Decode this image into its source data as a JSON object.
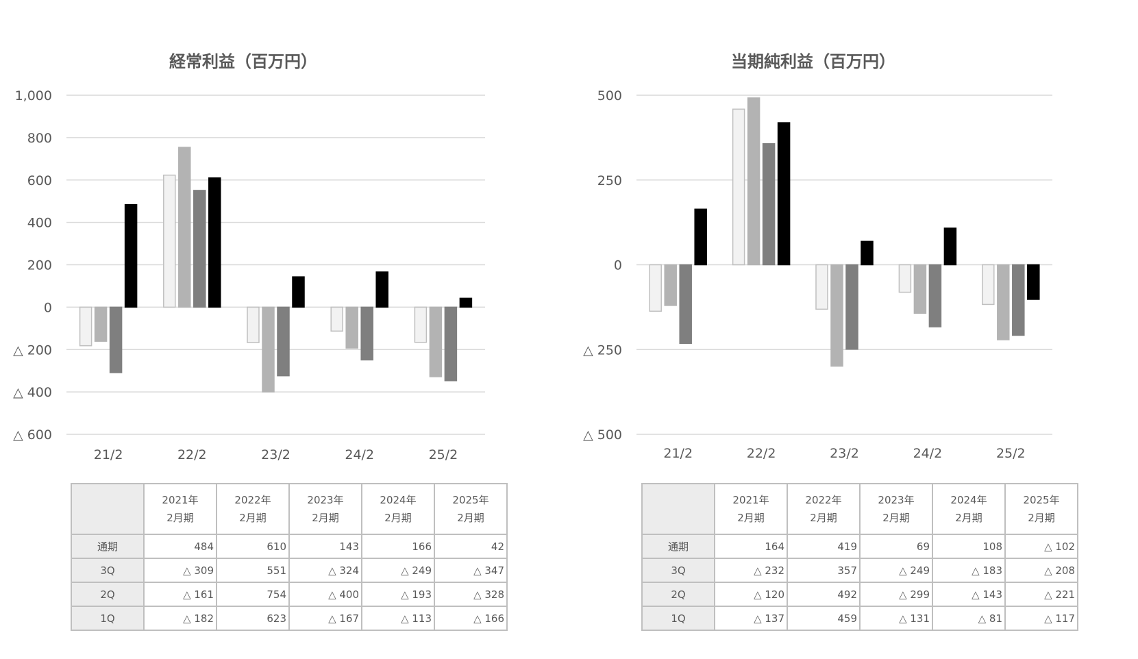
{
  "chart_data": [
    {
      "type": "bar",
      "title": "経常利益（百万円）",
      "categories": [
        "21/2",
        "22/2",
        "23/2",
        "24/2",
        "25/2"
      ],
      "ylim": [
        -600,
        1000
      ],
      "yticks": [
        1000,
        800,
        600,
        400,
        200,
        0,
        -200,
        -400,
        -600
      ],
      "ytick_labels": [
        "1,000",
        "800",
        "600",
        "400",
        "200",
        "0",
        "△ 200",
        "△ 400",
        "△ 600"
      ],
      "grid": true,
      "series": [
        {
          "values": [
            -182,
            623,
            -167,
            -113,
            -166
          ],
          "color": "#f2f2f2",
          "stroke": "#bfbfbf"
        },
        {
          "values": [
            -161,
            754,
            -400,
            -193,
            -328
          ],
          "color": "#b3b3b3",
          "stroke": "#b3b3b3"
        },
        {
          "values": [
            -309,
            551,
            -324,
            -249,
            -347
          ],
          "color": "#7f7f7f",
          "stroke": "#7f7f7f"
        },
        {
          "values": [
            484,
            610,
            143,
            166,
            42
          ],
          "color": "#000000",
          "stroke": "#000000"
        }
      ]
    },
    {
      "type": "bar",
      "title": "当期純利益（百万円）",
      "categories": [
        "21/2",
        "22/2",
        "23/2",
        "24/2",
        "25/2"
      ],
      "ylim": [
        -500,
        500
      ],
      "yticks": [
        500,
        250,
        0,
        -250,
        -500
      ],
      "ytick_labels": [
        "500",
        "250",
        "0",
        "△ 250",
        "△ 500"
      ],
      "grid": true,
      "series": [
        {
          "values": [
            -137,
            459,
            -131,
            -81,
            -117
          ],
          "color": "#f2f2f2",
          "stroke": "#bfbfbf"
        },
        {
          "values": [
            -120,
            492,
            -299,
            -143,
            -221
          ],
          "color": "#b3b3b3",
          "stroke": "#b3b3b3"
        },
        {
          "values": [
            -232,
            357,
            -249,
            -183,
            -208
          ],
          "color": "#7f7f7f",
          "stroke": "#7f7f7f"
        },
        {
          "values": [
            164,
            419,
            69,
            108,
            -102
          ],
          "color": "#000000",
          "stroke": "#000000"
        }
      ]
    }
  ],
  "tables": [
    {
      "columns": [
        {
          "line1": "2021年",
          "line2": "2月期"
        },
        {
          "line1": "2022年",
          "line2": "2月期"
        },
        {
          "line1": "2023年",
          "line2": "2月期"
        },
        {
          "line1": "2024年",
          "line2": "2月期"
        },
        {
          "line1": "2025年",
          "line2": "2月期"
        }
      ],
      "rows": [
        {
          "label": "通期",
          "cells": [
            "484",
            "610",
            "143",
            "166",
            "42"
          ]
        },
        {
          "label": "3Q",
          "cells": [
            "△ 309",
            "551",
            "△ 324",
            "△ 249",
            "△ 347"
          ]
        },
        {
          "label": "2Q",
          "cells": [
            "△ 161",
            "754",
            "△ 400",
            "△ 193",
            "△ 328"
          ]
        },
        {
          "label": "1Q",
          "cells": [
            "△ 182",
            "623",
            "△ 167",
            "△ 113",
            "△ 166"
          ]
        }
      ]
    },
    {
      "columns": [
        {
          "line1": "2021年",
          "line2": "2月期"
        },
        {
          "line1": "2022年",
          "line2": "2月期"
        },
        {
          "line1": "2023年",
          "line2": "2月期"
        },
        {
          "line1": "2024年",
          "line2": "2月期"
        },
        {
          "line1": "2025年",
          "line2": "2月期"
        }
      ],
      "rows": [
        {
          "label": "通期",
          "cells": [
            "164",
            "419",
            "69",
            "108",
            "△ 102"
          ]
        },
        {
          "label": "3Q",
          "cells": [
            "△ 232",
            "357",
            "△ 249",
            "△ 183",
            "△ 208"
          ]
        },
        {
          "label": "2Q",
          "cells": [
            "△ 120",
            "492",
            "△ 299",
            "△ 143",
            "△ 221"
          ]
        },
        {
          "label": "1Q",
          "cells": [
            "△ 137",
            "459",
            "△ 131",
            "△ 81",
            "△ 117"
          ]
        }
      ]
    }
  ]
}
